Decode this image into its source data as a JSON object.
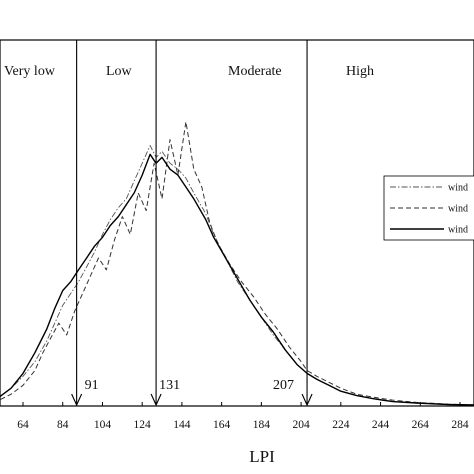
{
  "chart_data": {
    "type": "line",
    "title": "",
    "xlabel": "LPI",
    "ylabel": "",
    "xlim": [
      45,
      294
    ],
    "ylim": [
      0,
      100
    ],
    "x_ticks": [
      64,
      84,
      104,
      124,
      144,
      164,
      184,
      204,
      224,
      244,
      264,
      284
    ],
    "grid": false,
    "legend": {
      "position": "middle-right",
      "entries": [
        "wind",
        "wind",
        "wind"
      ]
    },
    "zones": [
      {
        "label": "Very low",
        "from": 45,
        "to": 91
      },
      {
        "label": "Low",
        "from": 91,
        "to": 131
      },
      {
        "label": "Moderate",
        "from": 131,
        "to": 207
      },
      {
        "label": "High",
        "from": 207,
        "to": 294
      }
    ],
    "thresholds": [
      {
        "value": 91,
        "label": "91"
      },
      {
        "value": 131,
        "label": "131"
      },
      {
        "value": 207,
        "label": "207"
      }
    ],
    "series": [
      {
        "name": "wind",
        "style": "dash-dot",
        "color": "#555555",
        "points": [
          [
            45,
            1
          ],
          [
            52,
            3
          ],
          [
            58,
            6
          ],
          [
            64,
            10
          ],
          [
            70,
            15
          ],
          [
            76,
            22
          ],
          [
            80,
            28
          ],
          [
            84,
            34
          ],
          [
            88,
            38
          ],
          [
            92,
            42
          ],
          [
            96,
            47
          ],
          [
            100,
            52
          ],
          [
            104,
            58
          ],
          [
            108,
            63
          ],
          [
            112,
            67
          ],
          [
            116,
            70
          ],
          [
            120,
            76
          ],
          [
            124,
            82
          ],
          [
            128,
            88
          ],
          [
            131,
            84
          ],
          [
            134,
            86
          ],
          [
            138,
            82
          ],
          [
            142,
            80
          ],
          [
            146,
            77
          ],
          [
            150,
            72
          ],
          [
            156,
            65
          ],
          [
            160,
            58
          ],
          [
            166,
            50
          ],
          [
            172,
            42
          ],
          [
            178,
            36
          ],
          [
            184,
            30
          ],
          [
            190,
            24
          ],
          [
            196,
            19
          ],
          [
            202,
            14
          ],
          [
            207,
            11
          ],
          [
            212,
            9
          ],
          [
            218,
            7
          ],
          [
            224,
            5
          ],
          [
            232,
            3.5
          ],
          [
            240,
            2.5
          ],
          [
            250,
            1.5
          ],
          [
            262,
            1
          ],
          [
            278,
            0.5
          ],
          [
            294,
            0.3
          ]
        ]
      },
      {
        "name": "wind",
        "style": "dashed",
        "color": "#333333",
        "points": [
          [
            45,
            0.5
          ],
          [
            52,
            2
          ],
          [
            58,
            4
          ],
          [
            64,
            7
          ],
          [
            70,
            12
          ],
          [
            74,
            18
          ],
          [
            78,
            23
          ],
          [
            82,
            28
          ],
          [
            86,
            24
          ],
          [
            90,
            32
          ],
          [
            94,
            38
          ],
          [
            98,
            44
          ],
          [
            102,
            50
          ],
          [
            106,
            46
          ],
          [
            110,
            56
          ],
          [
            114,
            64
          ],
          [
            118,
            58
          ],
          [
            122,
            72
          ],
          [
            126,
            66
          ],
          [
            130,
            82
          ],
          [
            134,
            70
          ],
          [
            138,
            90
          ],
          [
            142,
            78
          ],
          [
            146,
            96
          ],
          [
            150,
            80
          ],
          [
            154,
            74
          ],
          [
            158,
            62
          ],
          [
            162,
            55
          ],
          [
            168,
            48
          ],
          [
            174,
            42
          ],
          [
            180,
            37
          ],
          [
            186,
            31
          ],
          [
            192,
            26
          ],
          [
            198,
            20
          ],
          [
            204,
            15
          ],
          [
            207,
            12
          ],
          [
            212,
            10
          ],
          [
            218,
            8
          ],
          [
            224,
            6
          ],
          [
            232,
            4
          ],
          [
            240,
            3
          ],
          [
            250,
            2
          ],
          [
            262,
            1.2
          ],
          [
            278,
            0.6
          ],
          [
            294,
            0.3
          ]
        ]
      },
      {
        "name": "wind",
        "style": "solid",
        "color": "#000000",
        "points": [
          [
            45,
            1
          ],
          [
            52,
            3
          ],
          [
            58,
            6
          ],
          [
            64,
            11
          ],
          [
            70,
            18
          ],
          [
            76,
            26
          ],
          [
            80,
            33
          ],
          [
            84,
            39
          ],
          [
            88,
            42
          ],
          [
            92,
            46
          ],
          [
            96,
            50
          ],
          [
            100,
            54
          ],
          [
            104,
            57
          ],
          [
            108,
            61
          ],
          [
            112,
            64
          ],
          [
            116,
            68
          ],
          [
            120,
            72
          ],
          [
            124,
            78
          ],
          [
            128,
            85
          ],
          [
            131,
            82
          ],
          [
            134,
            84
          ],
          [
            138,
            80
          ],
          [
            142,
            78
          ],
          [
            146,
            74
          ],
          [
            150,
            70
          ],
          [
            156,
            63
          ],
          [
            160,
            57
          ],
          [
            166,
            50
          ],
          [
            172,
            43
          ],
          [
            178,
            36
          ],
          [
            184,
            30
          ],
          [
            190,
            25
          ],
          [
            196,
            19
          ],
          [
            202,
            14
          ],
          [
            207,
            11
          ],
          [
            212,
            9
          ],
          [
            218,
            7
          ],
          [
            224,
            5
          ],
          [
            232,
            3.5
          ],
          [
            240,
            2.5
          ],
          [
            250,
            1.5
          ],
          [
            262,
            1
          ],
          [
            278,
            0.5
          ],
          [
            294,
            0.3
          ]
        ]
      }
    ]
  }
}
